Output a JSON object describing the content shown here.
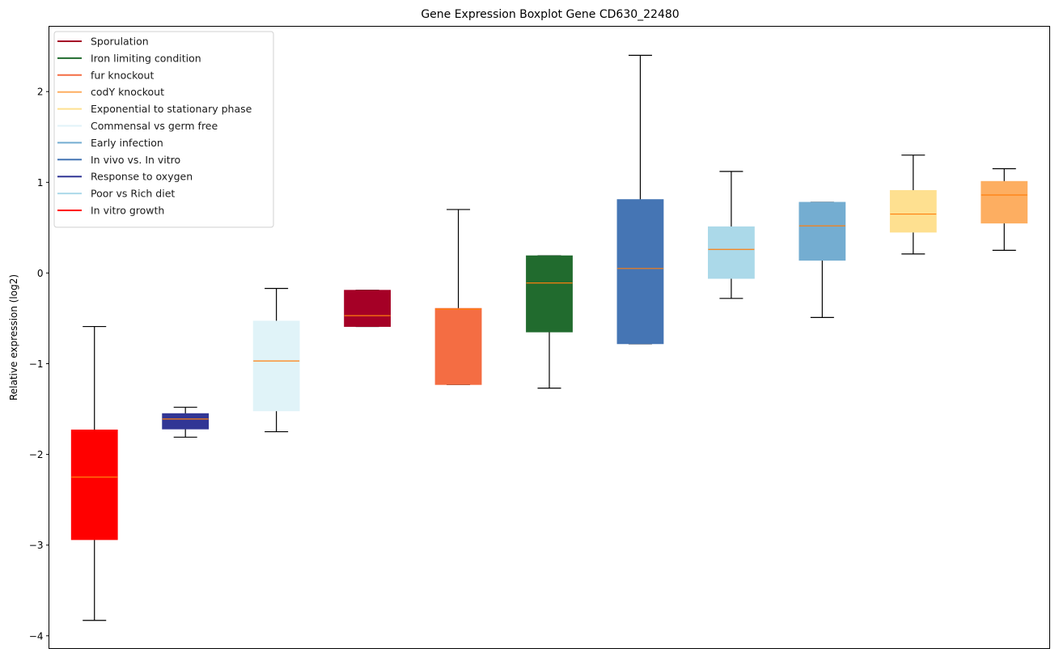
{
  "chart_data": {
    "type": "boxplot",
    "title": "Gene Expression Boxplot Gene CD630_22480",
    "xlabel": "",
    "ylabel": "Relative expression (log2)",
    "ylim": [
      -4.14,
      2.72
    ],
    "yticks": [
      -4,
      -3,
      -2,
      -1,
      0,
      1,
      2
    ],
    "ytick_labels": [
      "−4",
      "−3",
      "−2",
      "−1",
      "0",
      "1",
      "2"
    ],
    "grid": false,
    "legend_position": "top-left",
    "median_color": "#ff7f0e",
    "legend": [
      {
        "label": "Sporulation",
        "color": "#a50026"
      },
      {
        "label": "Iron limiting condition",
        "color": "#216b2e"
      },
      {
        "label": "fur knockout",
        "color": "#f46d43"
      },
      {
        "label": "codY knockout",
        "color": "#fdae61"
      },
      {
        "label": "Exponential to stationary phase",
        "color": "#fee090"
      },
      {
        "label": "Commensal vs germ free",
        "color": "#e0f3f8"
      },
      {
        "label": "Early infection",
        "color": "#74add1"
      },
      {
        "label": "In vivo vs. In vitro",
        "color": "#4575b4"
      },
      {
        "label": "Response to oxygen",
        "color": "#313695"
      },
      {
        "label": "Poor vs Rich diet",
        "color": "#abd9e9"
      },
      {
        "label": "In vitro growth",
        "color": "#ff0000"
      }
    ],
    "boxes": [
      {
        "name": "In vitro growth",
        "color": "#ff0000",
        "whisker_low": -3.83,
        "q1": -2.94,
        "median": -2.25,
        "q3": -1.73,
        "whisker_high": -0.59
      },
      {
        "name": "Response to oxygen",
        "color": "#313695",
        "whisker_low": -1.81,
        "q1": -1.72,
        "median": -1.61,
        "q3": -1.55,
        "whisker_high": -1.48
      },
      {
        "name": "Commensal vs germ free",
        "color": "#e0f3f8",
        "whisker_low": -1.75,
        "q1": -1.52,
        "median": -0.97,
        "q3": -0.53,
        "whisker_high": -0.17
      },
      {
        "name": "Sporulation",
        "color": "#a50026",
        "whisker_low": -0.59,
        "q1": -0.59,
        "median": -0.47,
        "q3": -0.19,
        "whisker_high": -0.19
      },
      {
        "name": "fur knockout",
        "color": "#f46d43",
        "whisker_low": -1.23,
        "q1": -1.23,
        "median": -0.4,
        "q3": -0.39,
        "whisker_high": 0.7
      },
      {
        "name": "Iron limiting condition",
        "color": "#216b2e",
        "whisker_low": -1.27,
        "q1": -0.65,
        "median": -0.11,
        "q3": 0.19,
        "whisker_high": 0.19
      },
      {
        "name": "In vivo vs. In vitro",
        "color": "#4575b4",
        "whisker_low": -0.78,
        "q1": -0.78,
        "median": 0.05,
        "q3": 0.81,
        "whisker_high": 2.4
      },
      {
        "name": "Poor vs Rich diet",
        "color": "#abd9e9",
        "whisker_low": -0.28,
        "q1": -0.06,
        "median": 0.26,
        "q3": 0.51,
        "whisker_high": 1.12
      },
      {
        "name": "Early infection",
        "color": "#74add1",
        "whisker_low": -0.49,
        "q1": 0.14,
        "median": 0.52,
        "q3": 0.78,
        "whisker_high": 0.78
      },
      {
        "name": "Exponential to stationary phase",
        "color": "#fee090",
        "whisker_low": 0.21,
        "q1": 0.45,
        "median": 0.65,
        "q3": 0.91,
        "whisker_high": 1.3
      },
      {
        "name": "codY knockout",
        "color": "#fdae61",
        "whisker_low": 0.25,
        "q1": 0.55,
        "median": 0.86,
        "q3": 1.01,
        "whisker_high": 1.15
      }
    ]
  }
}
